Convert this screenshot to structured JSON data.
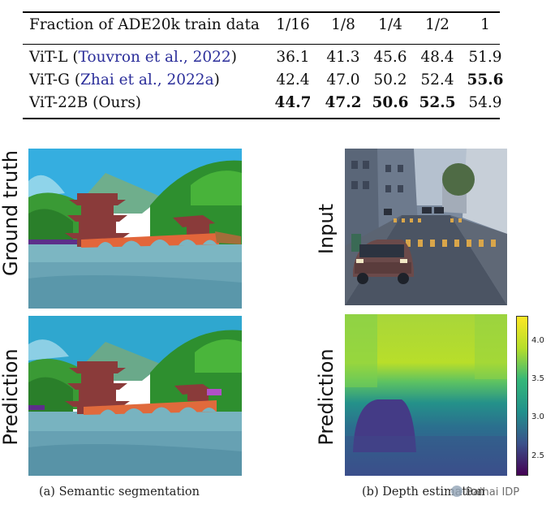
{
  "table": {
    "header": [
      "Fraction of ADE20k train data",
      "1/16",
      "1/8",
      "1/4",
      "1/2",
      "1"
    ],
    "rows": [
      {
        "model": "ViT-L",
        "open": "(",
        "citation": "Touvron et al., 2022",
        "close": ")",
        "values": [
          "36.1",
          "41.3",
          "45.6",
          "48.4",
          "51.9"
        ],
        "bold": [
          false,
          false,
          false,
          false,
          false
        ]
      },
      {
        "model": "ViT-G",
        "open": "(",
        "citation": "Zhai et al., 2022a",
        "close": ")",
        "values": [
          "42.4",
          "47.0",
          "50.2",
          "52.4",
          "55.6"
        ],
        "bold": [
          false,
          false,
          false,
          false,
          true
        ]
      },
      {
        "model": "ViT-22B (Ours)",
        "open": "",
        "citation": "",
        "close": "",
        "values": [
          "44.7",
          "47.2",
          "50.6",
          "52.5",
          "54.9"
        ],
        "bold": [
          true,
          true,
          true,
          true,
          false
        ]
      }
    ]
  },
  "figure": {
    "left_labels": [
      "Ground truth",
      "Prediction"
    ],
    "right_labels": [
      "Input",
      "Prediction"
    ],
    "caption_a": "(a) Semantic segmentation",
    "caption_b": "(b) Depth estimation",
    "colorbar_ticks": [
      "4.0",
      "3.5",
      "3.0",
      "2.5"
    ],
    "colorbar_range": [
      2.25,
      4.35
    ],
    "colors": {
      "citation": "#2b2e9a",
      "sky": "#2fa7cf",
      "water": "#76b7c4",
      "bridge": "#e0663a",
      "pagoda": "#8a3a3a",
      "trees": "#2f8c2a"
    }
  },
  "watermark": "Baihai IDP"
}
